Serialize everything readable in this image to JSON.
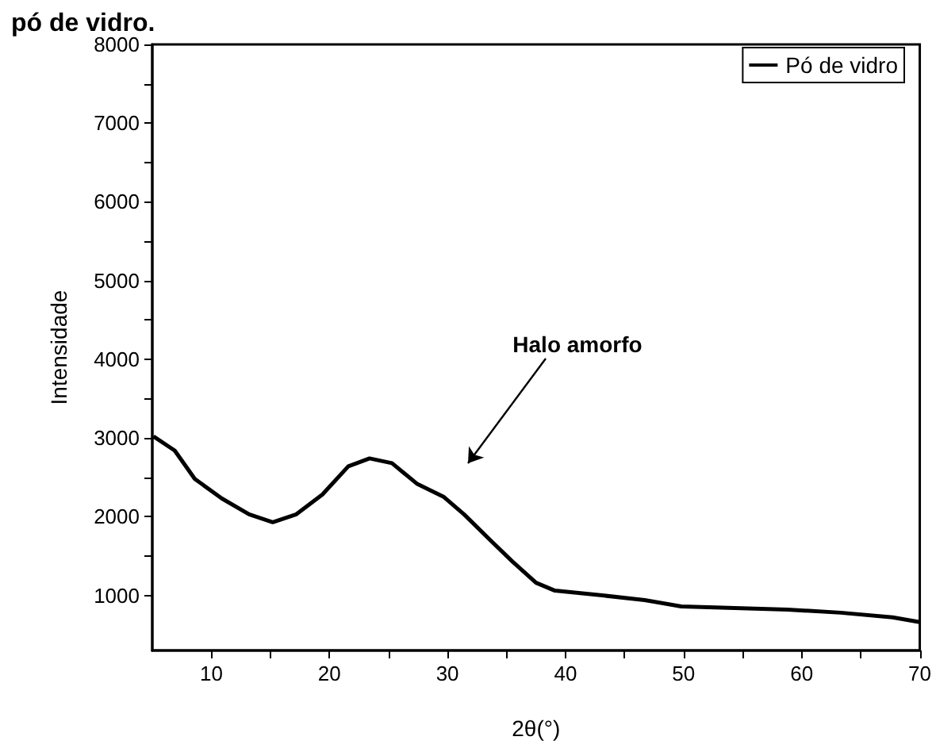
{
  "chart_data": {
    "type": "line",
    "title": "pó de vidro.",
    "xlabel": "2θ(°)",
    "ylabel": "Intensidade",
    "series": [
      {
        "name": "Pó de vidro",
        "color": "#000000",
        "x": [
          5.1,
          6.9,
          8.6,
          10.9,
          13.2,
          15.2,
          17.2,
          19.4,
          21.6,
          23.4,
          25.3,
          27.4,
          29.7,
          31.4,
          33.7,
          35.5,
          37.5,
          39.1,
          43.1,
          46.7,
          49.8,
          54.3,
          58.8,
          63.3,
          67.7,
          70
        ],
        "values": [
          3020,
          2840,
          2480,
          2230,
          2030,
          1930,
          2030,
          2280,
          2640,
          2740,
          2680,
          2420,
          2250,
          2030,
          1690,
          1430,
          1160,
          1060,
          1000,
          940,
          860,
          840,
          820,
          780,
          720,
          660
        ]
      }
    ],
    "annotations": [
      "Halo amorfo"
    ],
    "xlim": [
      5,
      70
    ],
    "xticks": [
      10,
      {
        "value": 15,
        "label": null
      },
      20,
      {
        "value": 25,
        "label": null
      },
      30,
      {
        "value": 35,
        "label": null
      },
      40,
      {
        "value": 45,
        "label": null
      },
      50,
      {
        "value": 55,
        "label": null
      },
      60,
      {
        "value": 65,
        "label": null
      },
      70
    ],
    "ylim": [
      300,
      8000
    ],
    "yticks": [
      1000,
      {
        "value": 1500,
        "label": null
      },
      2000,
      {
        "value": 2500,
        "label": null
      },
      3000,
      {
        "value": 3500,
        "label": null
      },
      4000,
      {
        "value": 4500,
        "label": null
      },
      5000,
      {
        "value": 5500,
        "label": null
      },
      6000,
      {
        "value": 6500,
        "label": null
      },
      7000,
      {
        "value": 7500,
        "label": null
      },
      8000
    ],
    "grid": false,
    "legend": "top right",
    "marker": "none",
    "line_style": "solid"
  }
}
